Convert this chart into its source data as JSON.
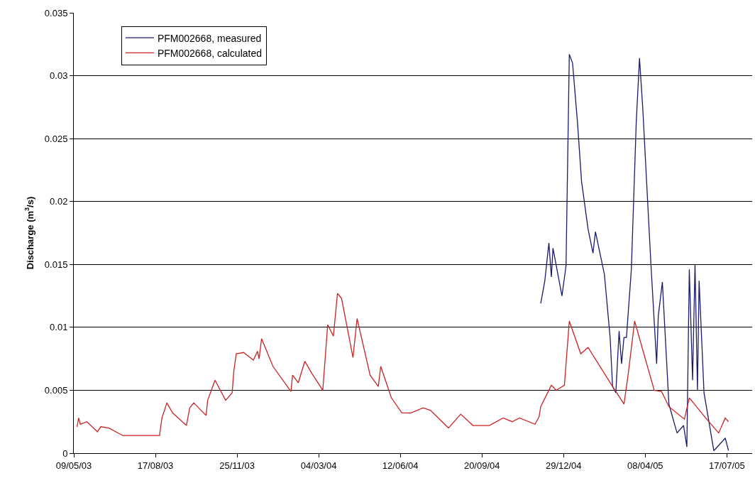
{
  "chart_data": {
    "type": "line",
    "ylabel": "Discharge (m$^{3}$/s)",
    "xlim": [
      "2003-05-09",
      "2005-08-17"
    ],
    "xticks": [
      {
        "value": "2003-05-09",
        "label": "09/05/03"
      },
      {
        "value": "2003-08-17",
        "label": "17/08/03"
      },
      {
        "value": "2003-11-25",
        "label": "25/11/03"
      },
      {
        "value": "2004-03-04",
        "label": "04/03/04"
      },
      {
        "value": "2004-06-12",
        "label": "12/06/04"
      },
      {
        "value": "2004-09-20",
        "label": "20/09/04"
      },
      {
        "value": "2004-12-29",
        "label": "29/12/04"
      },
      {
        "value": "2005-04-08",
        "label": "08/04/05"
      },
      {
        "value": "2005-07-17",
        "label": "17/07/05"
      }
    ],
    "ylim": [
      0,
      0.035
    ],
    "yticks": [
      0,
      0.005,
      0.01,
      0.015,
      0.02,
      0.025,
      0.03,
      0.035
    ],
    "grid": "y",
    "legend": "top left",
    "marker": "none",
    "line_style": "solid",
    "series": [
      {
        "name": "PFM002668, measured",
        "color": "#1a1a6e",
        "x": [
          "2004-12-01",
          "2004-12-06",
          "2004-12-11",
          "2004-12-14",
          "2004-12-16",
          "2004-12-27",
          "2005-01-01",
          "2005-01-05",
          "2005-01-09",
          "2005-01-15",
          "2005-01-20",
          "2005-01-28",
          "2005-02-03",
          "2005-02-06",
          "2005-02-17",
          "2005-02-24",
          "2005-02-27",
          "2005-03-03",
          "2005-03-07",
          "2005-03-10",
          "2005-03-13",
          "2005-03-16",
          "2005-03-22",
          "2005-03-28",
          "2005-04-01",
          "2005-04-05",
          "2005-04-15",
          "2005-04-22",
          "2005-04-24",
          "2005-04-29",
          "2005-05-07",
          "2005-05-17",
          "2005-05-25",
          "2005-05-29",
          "2005-06-01",
          "2005-06-05",
          "2005-06-08",
          "2005-06-11",
          "2005-06-13",
          "2005-06-19",
          "2005-07-01",
          "2005-07-11",
          "2005-07-15",
          "2005-07-19"
        ],
        "values": [
          0.0119,
          0.0137,
          0.0167,
          0.014,
          0.0163,
          0.0125,
          0.0149,
          0.0317,
          0.031,
          0.0263,
          0.0216,
          0.0178,
          0.0159,
          0.0176,
          0.0142,
          0.0092,
          0.0053,
          0.0048,
          0.0097,
          0.0071,
          0.0092,
          0.0092,
          0.0146,
          0.0263,
          0.0314,
          0.0274,
          0.015,
          0.0071,
          0.0109,
          0.0136,
          0.0039,
          0.0016,
          0.0022,
          0.0005,
          0.0146,
          0.0058,
          0.015,
          0.005,
          0.0137,
          0.0048,
          0.0002,
          0.0009,
          0.0012,
          0.0002
        ]
      },
      {
        "name": "PFM002668, calculated",
        "color": "#cc2222",
        "x": [
          "2003-05-13",
          "2003-05-15",
          "2003-05-17",
          "2003-05-25",
          "2003-06-07",
          "2003-06-11",
          "2003-06-21",
          "2003-07-08",
          "2003-08-18",
          "2003-08-22",
          "2003-08-25",
          "2003-08-31",
          "2003-09-07",
          "2003-09-24",
          "2003-09-28",
          "2003-10-03",
          "2003-10-18",
          "2003-10-20",
          "2003-10-29",
          "2003-11-11",
          "2003-11-19",
          "2003-11-21",
          "2003-11-24",
          "2003-12-03",
          "2003-12-15",
          "2003-12-20",
          "2003-12-22",
          "2003-12-25",
          "2004-01-08",
          "2004-01-30",
          "2004-02-01",
          "2004-02-08",
          "2004-02-16",
          "2004-02-25",
          "2004-03-09",
          "2004-03-15",
          "2004-03-22",
          "2004-03-27",
          "2004-04-01",
          "2004-04-15",
          "2004-04-20",
          "2004-05-06",
          "2004-05-16",
          "2004-05-19",
          "2004-06-01",
          "2004-06-14",
          "2004-06-25",
          "2004-07-10",
          "2004-07-19",
          "2004-08-10",
          "2004-08-25",
          "2004-09-09",
          "2004-09-29",
          "2004-10-16",
          "2004-10-27",
          "2004-11-05",
          "2004-11-24",
          "2004-11-29",
          "2004-12-01",
          "2004-12-14",
          "2004-12-20",
          "2004-12-30",
          "2005-01-05",
          "2005-01-19",
          "2005-01-28",
          "2005-02-27",
          "2005-03-13",
          "2005-03-18",
          "2005-03-26",
          "2005-04-19",
          "2005-04-28",
          "2005-05-07",
          "2005-05-26",
          "2005-06-01",
          "2005-06-21",
          "2005-07-07",
          "2005-07-15",
          "2005-07-19"
        ],
        "values": [
          0.0021,
          0.0028,
          0.0023,
          0.0025,
          0.0017,
          0.0021,
          0.002,
          0.0014,
          0.0014,
          0.0014,
          0.0028,
          0.004,
          0.0032,
          0.0022,
          0.0036,
          0.004,
          0.003,
          0.0042,
          0.0058,
          0.0042,
          0.0048,
          0.0065,
          0.0079,
          0.008,
          0.0074,
          0.0081,
          0.0075,
          0.0091,
          0.0069,
          0.0049,
          0.0062,
          0.0056,
          0.0073,
          0.0063,
          0.005,
          0.0102,
          0.0093,
          0.0127,
          0.0123,
          0.0076,
          0.0107,
          0.0062,
          0.0053,
          0.0069,
          0.0044,
          0.0032,
          0.0032,
          0.0036,
          0.0034,
          0.002,
          0.0031,
          0.0022,
          0.0022,
          0.0028,
          0.0025,
          0.0028,
          0.0023,
          0.0029,
          0.0037,
          0.0054,
          0.005,
          0.0054,
          0.0105,
          0.0079,
          0.0084,
          0.0053,
          0.0039,
          0.0062,
          0.0105,
          0.005,
          0.0049,
          0.0037,
          0.0027,
          0.0044,
          0.0028,
          0.0016,
          0.0028,
          0.0025
        ]
      }
    ]
  }
}
